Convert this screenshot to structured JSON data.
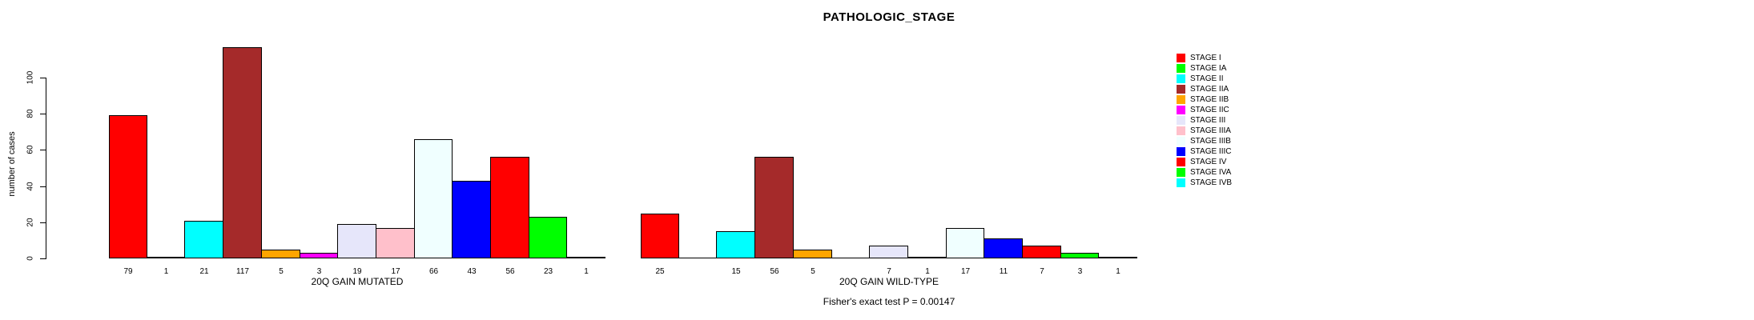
{
  "title": "PATHOLOGIC_STAGE",
  "footer": "Fisher's exact test P = 0.00147",
  "y_axis": {
    "label": "number of cases"
  },
  "chart_data": {
    "type": "bar",
    "title": "PATHOLOGIC_STAGE",
    "xlabel": "",
    "ylabel": "number of cases",
    "ylim": [
      0,
      117
    ],
    "yticks": [
      0,
      20,
      40,
      60,
      80,
      100
    ],
    "grid": false,
    "legend_position": "right",
    "categories": [
      "STAGE I",
      "STAGE IA",
      "STAGE II",
      "STAGE IIA",
      "STAGE IIB",
      "STAGE IIC",
      "STAGE III",
      "STAGE IIIA",
      "STAGE IIIB",
      "STAGE IIIC",
      "STAGE IV",
      "STAGE IVA",
      "STAGE IVB"
    ],
    "bar_colors": [
      "#FF0000",
      "#00FF00",
      "#00FFFF",
      "#A52A2A",
      "#FFA500",
      "#FF00FF",
      "#E6E6FA",
      "#FFC0CB",
      "#F0FFFF",
      "#0000FF",
      "#FF0000",
      "#00FF00",
      "#00FFFF"
    ],
    "series": [
      {
        "name": "20Q GAIN MUTATED",
        "values": [
          79,
          1,
          21,
          117,
          5,
          3,
          19,
          17,
          66,
          43,
          56,
          23,
          1
        ]
      },
      {
        "name": "20Q GAIN WILD-TYPE",
        "values": [
          25,
          0,
          15,
          56,
          5,
          0,
          7,
          1,
          17,
          11,
          7,
          3,
          1
        ]
      }
    ],
    "annotation": "Fisher's exact test P = 0.00147"
  }
}
